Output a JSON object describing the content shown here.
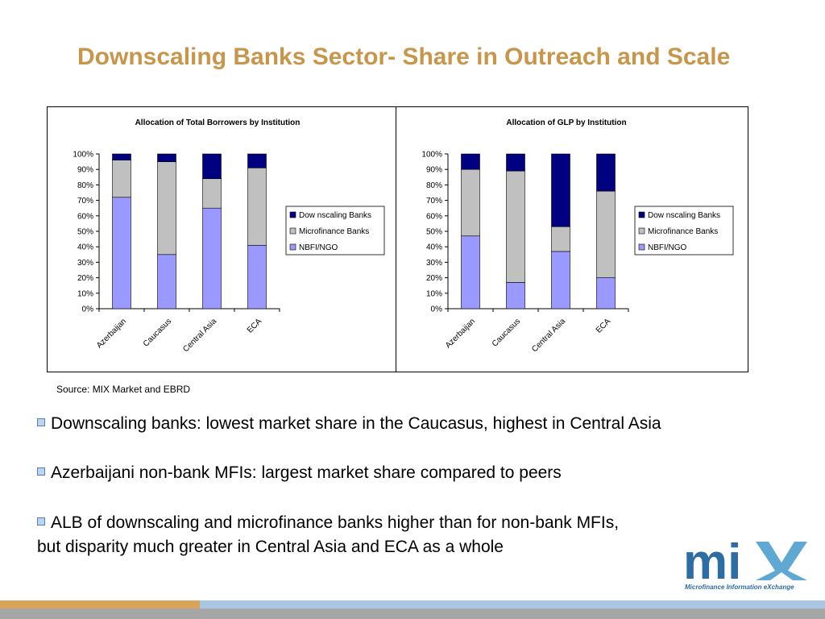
{
  "slide": {
    "title": "Downscaling Banks Sector- Share in Outreach and Scale",
    "source": "Source: MIX Market and EBRD",
    "bullets": [
      "Downscaling banks: lowest market share in the Caucasus, highest in Central Asia",
      "Azerbaijani non-bank MFIs: largest market share compared to peers",
      "ALB of downscaling and microfinance banks higher than for non-bank MFIs,"
    ],
    "bullet_3_continuation": "but disparity much greater in Central Asia and ECA as a whole",
    "logo_text": "mix",
    "logo_tagline": "Microfinance Information eXchange"
  },
  "colors": {
    "title": "#C8964A",
    "downscaling": "#000080",
    "microfinance": "#C0C0C0",
    "nbfi": "#9999FF"
  },
  "chart_data": [
    {
      "type": "bar",
      "stacked": true,
      "percent": true,
      "title": "Allocation of Total Borrowers by Institution",
      "categories": [
        "Azerbaijan",
        "Caucasus",
        "Central Asia",
        "ECA"
      ],
      "series": [
        {
          "name": "NBFI/NGO",
          "values": [
            72,
            35,
            65,
            41
          ]
        },
        {
          "name": "Microfinance Banks",
          "values": [
            24,
            60,
            19,
            50
          ]
        },
        {
          "name": "Downscaling Banks",
          "values": [
            4,
            5,
            16,
            9
          ]
        }
      ],
      "legend_labels": [
        "Dow nscaling Banks",
        "Microfinance Banks",
        "NBFI/NGO"
      ],
      "y_ticks": [
        "0%",
        "10%",
        "20%",
        "30%",
        "40%",
        "50%",
        "60%",
        "70%",
        "80%",
        "90%",
        "100%"
      ],
      "ylim": [
        0,
        100
      ],
      "legend_position": "right"
    },
    {
      "type": "bar",
      "stacked": true,
      "percent": true,
      "title": "Allocation of GLP by Institution",
      "categories": [
        "Azerbaijan",
        "Caucasus",
        "Central Asia",
        "ECA"
      ],
      "series": [
        {
          "name": "NBFI/NGO",
          "values": [
            47,
            17,
            37,
            20
          ]
        },
        {
          "name": "Microfinance Banks",
          "values": [
            43,
            72,
            16,
            56
          ]
        },
        {
          "name": "Downscaling Banks",
          "values": [
            10,
            11,
            47,
            24
          ]
        }
      ],
      "legend_labels": [
        "Dow nscaling Banks",
        "Microfinance Banks",
        "NBFI/NGO"
      ],
      "y_ticks": [
        "0%",
        "10%",
        "20%",
        "30%",
        "40%",
        "50%",
        "60%",
        "70%",
        "80%",
        "90%",
        "100%"
      ],
      "ylim": [
        0,
        100
      ],
      "legend_position": "right"
    }
  ]
}
